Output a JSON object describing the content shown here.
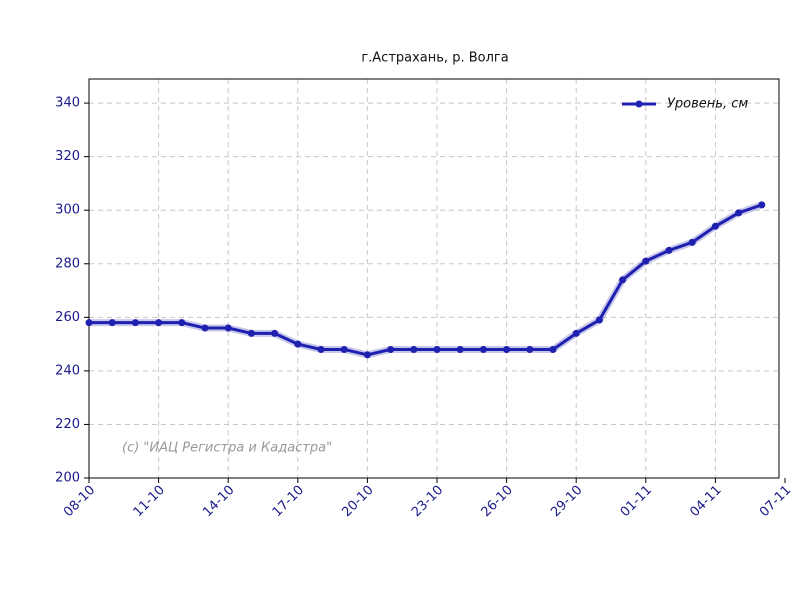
{
  "chart_data": {
    "type": "line",
    "title": "г.Астрахань, р. Волга",
    "annotation": "(с) \"ИАЦ Регистра и Кадастра\"",
    "categories": [
      "08-10",
      null,
      null,
      "11-10",
      null,
      null,
      "14-10",
      null,
      null,
      "17-10",
      null,
      null,
      "20-10",
      null,
      null,
      "23-10",
      null,
      null,
      "26-10",
      null,
      null,
      "29-10",
      null,
      null,
      "01-11",
      null,
      null,
      "04-11",
      null,
      null,
      "07-11"
    ],
    "series": [
      {
        "name": "Уровень, см",
        "color": "#1f1fb0",
        "values": [
          258,
          258,
          258,
          258,
          258,
          256,
          256,
          254,
          254,
          250,
          248,
          248,
          246,
          248,
          248,
          248,
          248,
          248,
          248,
          248,
          248,
          254,
          259,
          274,
          281,
          285,
          288,
          294,
          299,
          302,
          null
        ]
      }
    ],
    "ylim": [
      200,
      349
    ],
    "yticks": [
      200,
      220,
      240,
      260,
      280,
      300,
      320,
      340
    ],
    "grid": true,
    "legend": "upper right"
  }
}
